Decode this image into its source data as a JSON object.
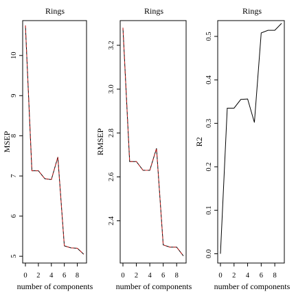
{
  "chart_data": [
    {
      "type": "line",
      "title": "Rings",
      "xlabel": "number of components",
      "ylabel": "MSEP",
      "x": [
        0,
        1,
        2,
        3,
        4,
        5,
        6,
        7,
        8,
        9
      ],
      "x_ticks": [
        "0",
        "2",
        "4",
        "6",
        "8"
      ],
      "y_ticks": [
        "5",
        "6",
        "7",
        "8",
        "9",
        "10"
      ],
      "xlim": [
        0,
        9
      ],
      "ylim": [
        4.9,
        10.8
      ],
      "series": [
        {
          "values": [
            10.75,
            7.13,
            7.13,
            6.93,
            6.91,
            7.47,
            5.26,
            5.21,
            5.2,
            5.05
          ],
          "color": "#000000",
          "style": "solid"
        },
        {
          "values": [
            10.75,
            7.13,
            7.13,
            6.93,
            6.91,
            7.47,
            5.26,
            5.21,
            5.2,
            5.05
          ],
          "color": "#cc2222",
          "style": "dashed"
        }
      ]
    },
    {
      "type": "line",
      "title": "Rings",
      "xlabel": "number of components",
      "ylabel": "RMSEP",
      "x": [
        0,
        1,
        2,
        3,
        4,
        5,
        6,
        7,
        8,
        9
      ],
      "x_ticks": [
        "0",
        "2",
        "4",
        "6",
        "8"
      ],
      "y_ticks": [
        "2.4",
        "2.6",
        "2.8",
        "3.0",
        "3.2"
      ],
      "xlim": [
        0,
        9
      ],
      "ylim": [
        2.22,
        3.3
      ],
      "series": [
        {
          "values": [
            3.28,
            2.67,
            2.67,
            2.63,
            2.63,
            2.73,
            2.29,
            2.28,
            2.28,
            2.24
          ],
          "color": "#000000",
          "style": "solid"
        },
        {
          "values": [
            3.28,
            2.67,
            2.67,
            2.63,
            2.63,
            2.73,
            2.29,
            2.28,
            2.28,
            2.24
          ],
          "color": "#cc2222",
          "style": "dashed"
        }
      ]
    },
    {
      "type": "line",
      "title": "Rings",
      "xlabel": "number of components",
      "ylabel": "R2",
      "x": [
        0,
        1,
        2,
        3,
        4,
        5,
        6,
        7,
        8,
        9
      ],
      "x_ticks": [
        "0",
        "2",
        "4",
        "6",
        "8"
      ],
      "y_ticks": [
        "0.0",
        "0.1",
        "0.2",
        "0.3",
        "0.4",
        "0.5"
      ],
      "xlim": [
        0,
        9
      ],
      "ylim": [
        -0.015,
        0.53
      ],
      "series": [
        {
          "values": [
            0.0,
            0.335,
            0.335,
            0.355,
            0.356,
            0.302,
            0.508,
            0.514,
            0.514,
            0.53
          ],
          "color": "#000000",
          "style": "solid"
        }
      ]
    }
  ]
}
